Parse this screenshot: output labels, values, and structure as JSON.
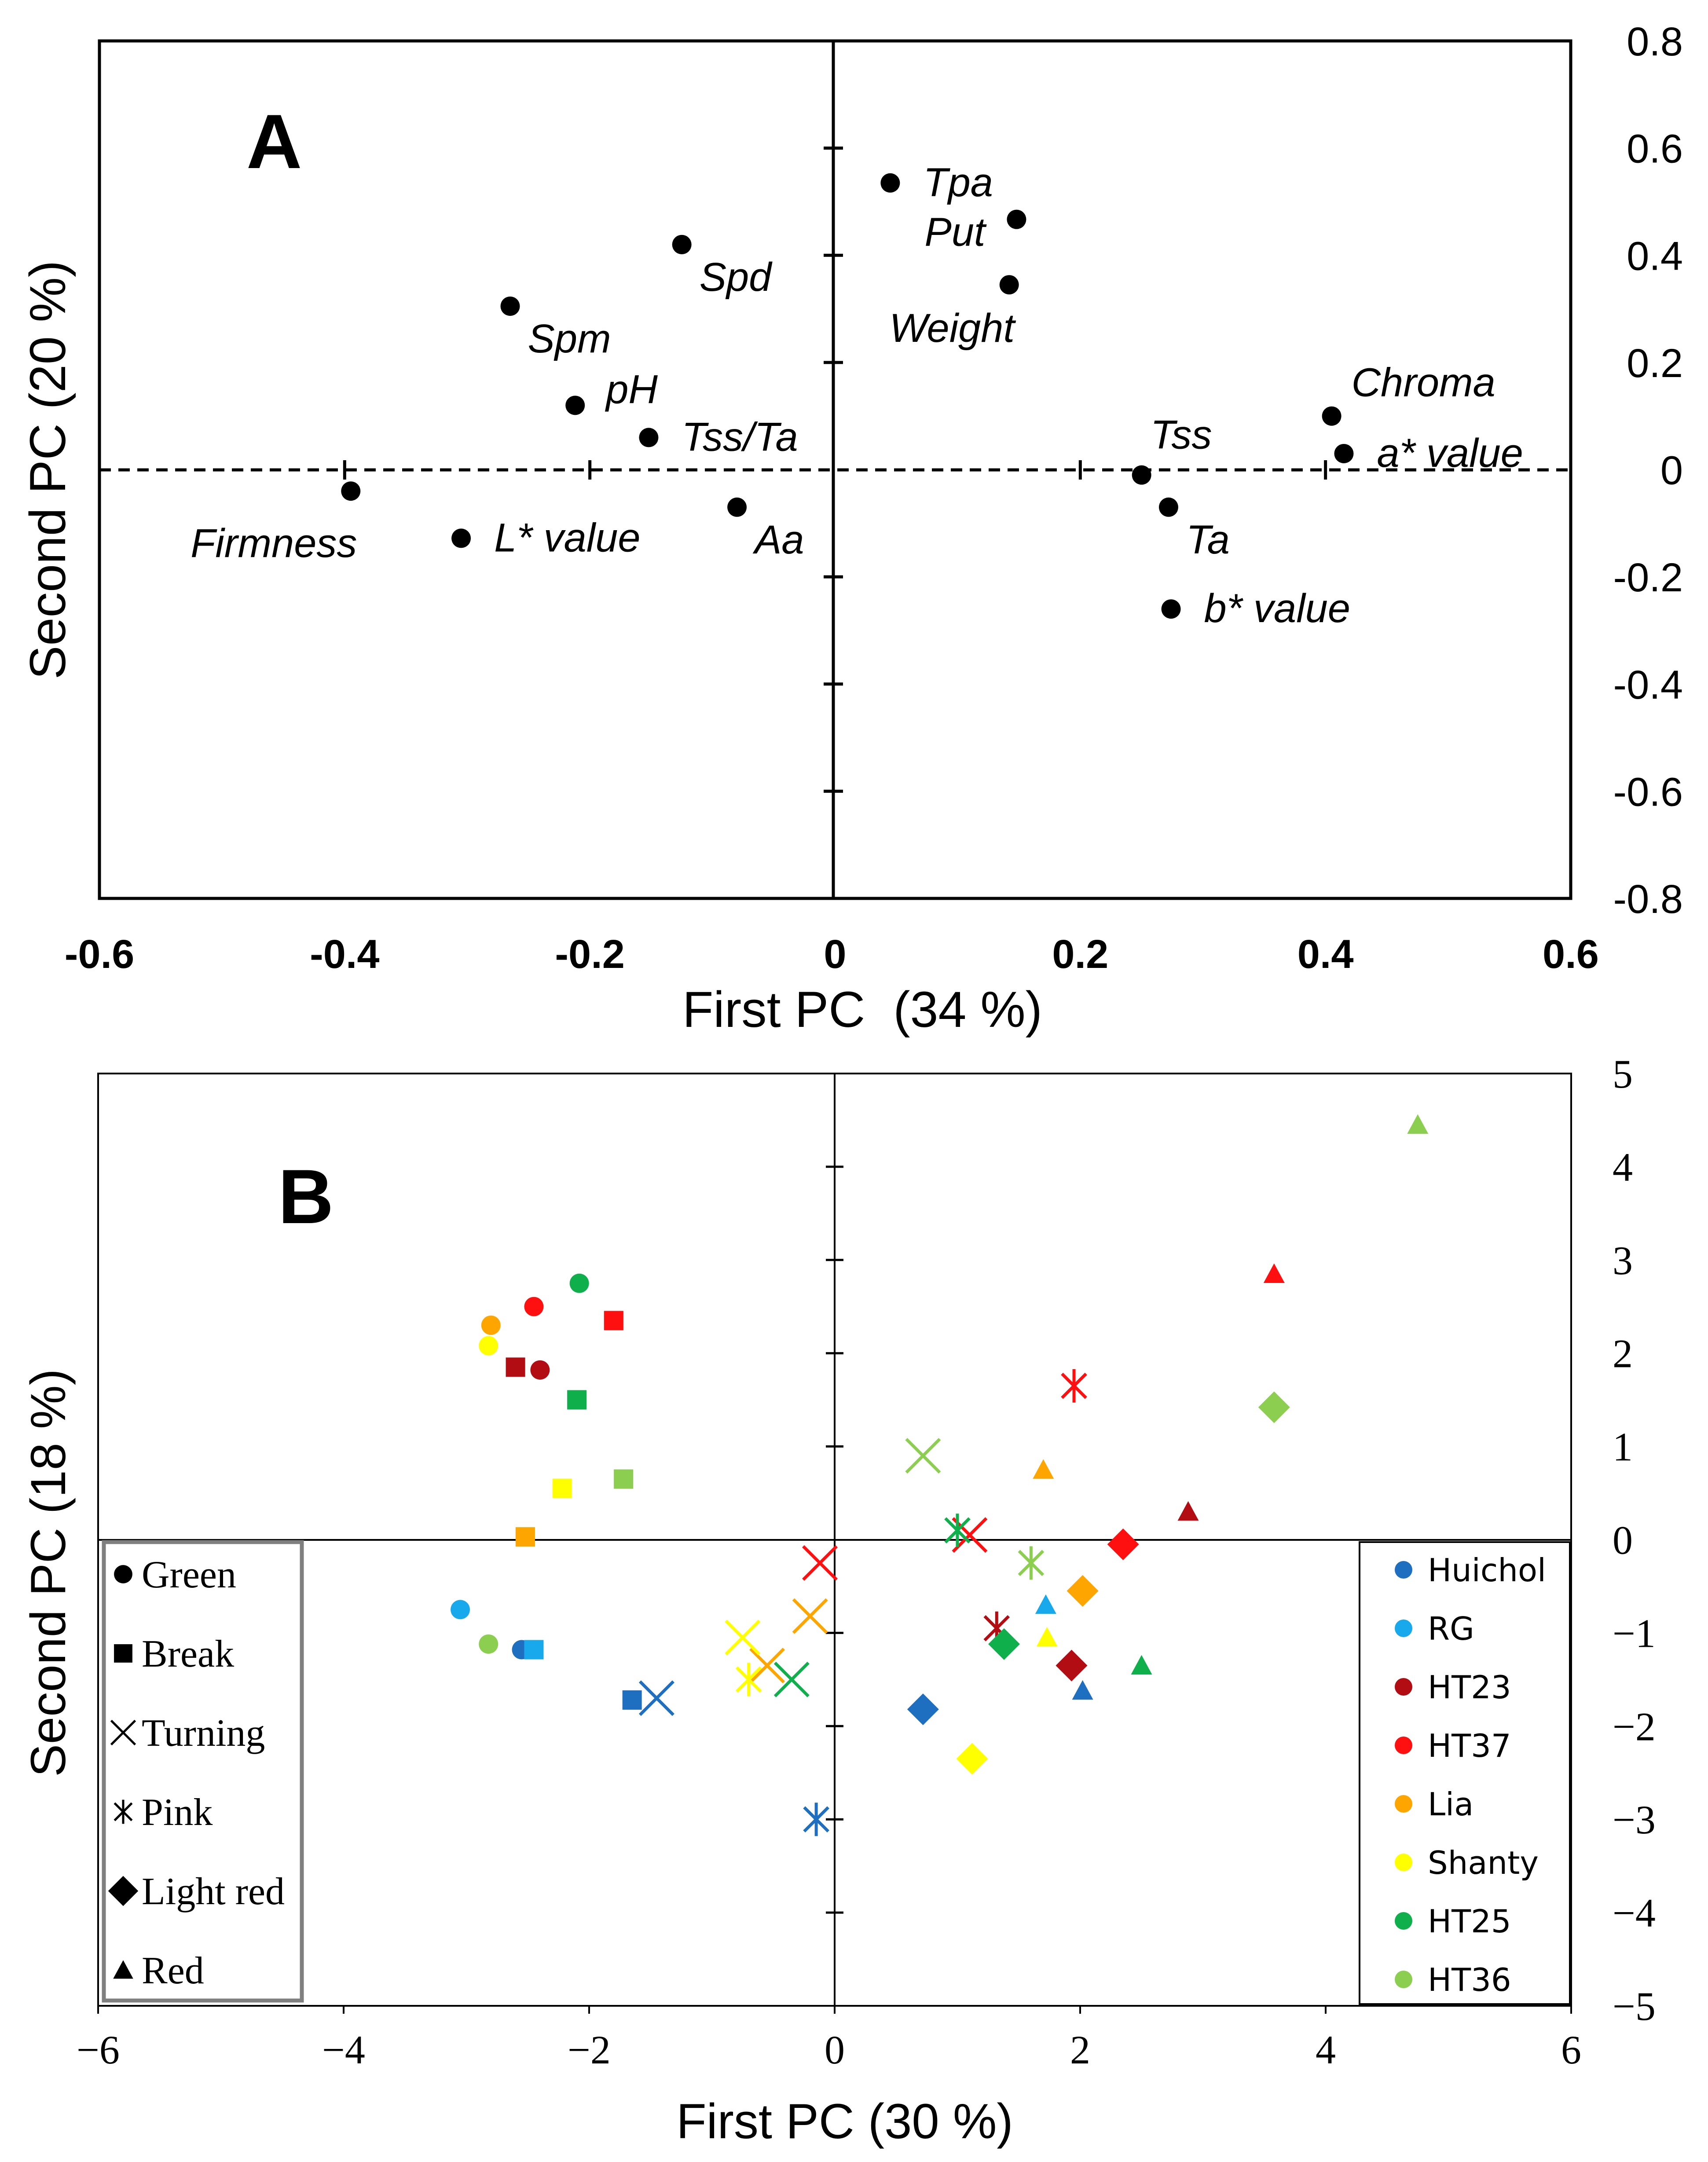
{
  "chart_data": [
    {
      "type": "scatter",
      "panel_label": "A",
      "xlabel": "First PC  (34 %)",
      "ylabel": "Second PC (20 %)",
      "xlim": [
        -0.6,
        0.6
      ],
      "ylim": [
        -0.8,
        0.8
      ],
      "x_ticks": [
        -0.6,
        -0.4,
        -0.2,
        0,
        0.2,
        0.4,
        0.6
      ],
      "x_tick_labels": [
        "-0.6",
        "-0.4",
        "-0.2",
        "0",
        "0.2",
        "0.4",
        "0.6"
      ],
      "y_ticks": [
        0.8,
        0.6,
        0.4,
        0.2,
        0,
        -0.2,
        -0.4,
        -0.6,
        -0.8
      ],
      "y_tick_labels": [
        "0.8",
        "0.6",
        "0.4",
        "0.2",
        "0",
        "-0.2",
        "-0.4",
        "-0.6",
        "-0.8"
      ],
      "points": [
        {
          "label": "Tpa",
          "x": 0.045,
          "y": 0.535,
          "lpos": "right"
        },
        {
          "label": "Put",
          "x": 0.148,
          "y": 0.467,
          "lpos": "below-left"
        },
        {
          "label": "Weight",
          "x": 0.142,
          "y": 0.345,
          "lpos": "below-left"
        },
        {
          "label": "Spd",
          "x": -0.125,
          "y": 0.42,
          "lpos": "below-right"
        },
        {
          "label": "Spm",
          "x": -0.265,
          "y": 0.305,
          "lpos": "below-right"
        },
        {
          "label": "pH",
          "x": -0.212,
          "y": 0.12,
          "lpos": "right-up"
        },
        {
          "label": "Tss/Ta",
          "x": -0.152,
          "y": 0.06,
          "lpos": "right"
        },
        {
          "label": "Firmness",
          "x": -0.395,
          "y": -0.04,
          "lpos": "below-left"
        },
        {
          "label": "L* value",
          "x": -0.305,
          "y": -0.128,
          "lpos": "right"
        },
        {
          "label": "Aa",
          "x": -0.08,
          "y": -0.07,
          "lpos": "below-right"
        },
        {
          "label": "Tss",
          "x": 0.25,
          "y": -0.01,
          "lpos": "above"
        },
        {
          "label": "Ta",
          "x": 0.272,
          "y": -0.07,
          "lpos": "below-right"
        },
        {
          "label": "b* value",
          "x": 0.274,
          "y": -0.26,
          "lpos": "right"
        },
        {
          "label": "Chroma",
          "x": 0.405,
          "y": 0.1,
          "lpos": "above-right"
        },
        {
          "label": "a* value",
          "x": 0.415,
          "y": 0.03,
          "lpos": "right"
        }
      ]
    },
    {
      "type": "scatter",
      "panel_label": "B",
      "xlabel": "First PC (30 %)",
      "ylabel": "Second PC (18 %)",
      "xlim": [
        -6,
        6
      ],
      "ylim": [
        -5,
        5
      ],
      "x_ticks": [
        -6,
        -4,
        -2,
        0,
        2,
        4,
        6
      ],
      "x_tick_labels": [
        "−6",
        "−4",
        "−2",
        "0",
        "2",
        "4",
        "6"
      ],
      "y_ticks": [
        5,
        4,
        3,
        2,
        1,
        0,
        -1,
        -2,
        -3,
        -4,
        -5
      ],
      "y_tick_labels": [
        "5",
        "4",
        "3",
        "2",
        "1",
        "0",
        "−1",
        "−2",
        "−3",
        "−4",
        "−5"
      ],
      "legend_shapes": {
        "position": "bottom-left",
        "items": [
          {
            "shape": "circle",
            "label": "Green"
          },
          {
            "shape": "square",
            "label": "Break"
          },
          {
            "shape": "x",
            "label": "Turning"
          },
          {
            "shape": "asterisk",
            "label": "Pink"
          },
          {
            "shape": "diamond",
            "label": "Light red"
          },
          {
            "shape": "triangle",
            "label": "Red"
          }
        ]
      },
      "legend_colors": {
        "position": "bottom-right",
        "items": [
          {
            "label": "Huichol",
            "color": "#1f6fc0"
          },
          {
            "label": "RG",
            "color": "#18a8ec"
          },
          {
            "label": "HT23",
            "color": "#b20d12"
          },
          {
            "label": "HT37",
            "color": "#ff1010"
          },
          {
            "label": "Lia",
            "color": "#ffa500"
          },
          {
            "label": "Shanty",
            "color": "#ffff00"
          },
          {
            "label": "HT25",
            "color": "#0fb04c"
          },
          {
            "label": "HT36",
            "color": "#8ccf50"
          }
        ]
      },
      "series": [
        {
          "name": "Huichol",
          "color": "#1f6fc0",
          "points": [
            {
              "stage": "Green",
              "x": -2.55,
              "y": -1.18
            },
            {
              "stage": "Break",
              "x": -1.65,
              "y": -1.72
            },
            {
              "stage": "Turning",
              "x": -1.45,
              "y": -1.7
            },
            {
              "stage": "Pink",
              "x": -0.15,
              "y": -3.0
            },
            {
              "stage": "Light red",
              "x": 0.72,
              "y": -1.82
            },
            {
              "stage": "Red",
              "x": 2.02,
              "y": -1.62
            }
          ]
        },
        {
          "name": "RG",
          "color": "#18a8ec",
          "points": [
            {
              "stage": "Green",
              "x": -3.05,
              "y": -0.75
            },
            {
              "stage": "Break",
              "x": -2.45,
              "y": -1.18
            },
            {
              "stage": "Red",
              "x": 1.72,
              "y": -0.7
            }
          ]
        },
        {
          "name": "HT23",
          "color": "#b20d12",
          "points": [
            {
              "stage": "Green",
              "x": -2.4,
              "y": 1.82
            },
            {
              "stage": "Break",
              "x": -2.6,
              "y": 1.85
            },
            {
              "stage": "Pink",
              "x": 1.32,
              "y": -0.95
            },
            {
              "stage": "Light red",
              "x": 1.93,
              "y": -1.35
            },
            {
              "stage": "Red",
              "x": 2.88,
              "y": 0.3
            }
          ]
        },
        {
          "name": "HT37",
          "color": "#ff1010",
          "points": [
            {
              "stage": "Green",
              "x": -2.45,
              "y": 2.5
            },
            {
              "stage": "Break",
              "x": -1.8,
              "y": 2.35
            },
            {
              "stage": "Turning",
              "x": -0.12,
              "y": -0.25
            },
            {
              "stage": "Turning",
              "x": 1.1,
              "y": 0.05
            },
            {
              "stage": "Pink",
              "x": 1.95,
              "y": 1.65
            },
            {
              "stage": "Light red",
              "x": 2.35,
              "y": -0.05
            },
            {
              "stage": "Red",
              "x": 3.58,
              "y": 2.85
            }
          ]
        },
        {
          "name": "Lia",
          "color": "#ffa500",
          "points": [
            {
              "stage": "Green",
              "x": -2.8,
              "y": 2.3
            },
            {
              "stage": "Break",
              "x": -2.52,
              "y": 0.03
            },
            {
              "stage": "Turning",
              "x": -0.2,
              "y": -0.82
            },
            {
              "stage": "Turning",
              "x": -0.55,
              "y": -1.35
            },
            {
              "stage": "Light red",
              "x": 2.02,
              "y": -0.55
            },
            {
              "stage": "Red",
              "x": 1.7,
              "y": 0.75
            }
          ]
        },
        {
          "name": "Shanty",
          "color": "#ffff00",
          "points": [
            {
              "stage": "Green",
              "x": -2.82,
              "y": 2.08
            },
            {
              "stage": "Break",
              "x": -2.22,
              "y": 0.55
            },
            {
              "stage": "Turning",
              "x": -0.75,
              "y": -1.05
            },
            {
              "stage": "Pink",
              "x": -0.7,
              "y": -1.5
            },
            {
              "stage": "Light red",
              "x": 1.12,
              "y": -2.35
            },
            {
              "stage": "Red",
              "x": 1.73,
              "y": -1.05
            }
          ]
        },
        {
          "name": "HT25",
          "color": "#0fb04c",
          "points": [
            {
              "stage": "Green",
              "x": -2.08,
              "y": 2.75
            },
            {
              "stage": "Break",
              "x": -2.1,
              "y": 1.5
            },
            {
              "stage": "Pink",
              "x": 1.0,
              "y": 0.1
            },
            {
              "stage": "Turning",
              "x": -0.35,
              "y": -1.5
            },
            {
              "stage": "Light red",
              "x": 1.38,
              "y": -1.12
            },
            {
              "stage": "Red",
              "x": 2.5,
              "y": -1.35
            }
          ]
        },
        {
          "name": "HT36",
          "color": "#8ccf50",
          "points": [
            {
              "stage": "Green",
              "x": -2.82,
              "y": -1.12
            },
            {
              "stage": "Break",
              "x": -1.72,
              "y": 0.65
            },
            {
              "stage": "Turning",
              "x": 0.72,
              "y": 0.9
            },
            {
              "stage": "Pink",
              "x": 1.6,
              "y": -0.25
            },
            {
              "stage": "Light red",
              "x": 3.58,
              "y": 1.42
            },
            {
              "stage": "Red",
              "x": 4.75,
              "y": 4.45
            }
          ]
        }
      ]
    }
  ]
}
